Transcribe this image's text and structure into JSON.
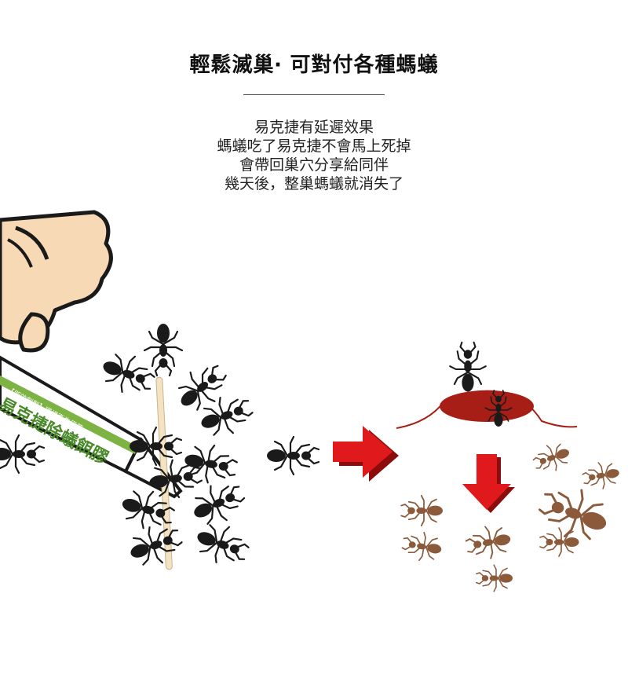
{
  "heading": {
    "title": "輕鬆滅巢‧ 可對付各種螞蟻"
  },
  "description": {
    "lines": [
      "易克捷有延遲效果",
      "螞蟻吃了易克捷不會馬上死掉",
      "會帶回巢穴分享給同伴",
      "幾天後，整巢螞蟻就消失了"
    ]
  },
  "product": {
    "tube_label": "易克捷除蟻餌膠",
    "tube_top_text": "【即效劑型】環境衛生用藥"
  },
  "icons": {
    "arrow_right": "red-arrow-right-icon",
    "arrow_down": "red-arrow-down-icon",
    "ant": "ant-icon",
    "nest": "ant-nest-icon"
  },
  "colors": {
    "ant_black": "#1a1a1a",
    "ant_dead": "#8a5a3a",
    "arrow_red": "#e0191c",
    "arrow_shadow": "#8c0c0c",
    "nest_red": "#a61e16",
    "tube_green": "#7cb342",
    "skin": "#f7d9b5"
  }
}
